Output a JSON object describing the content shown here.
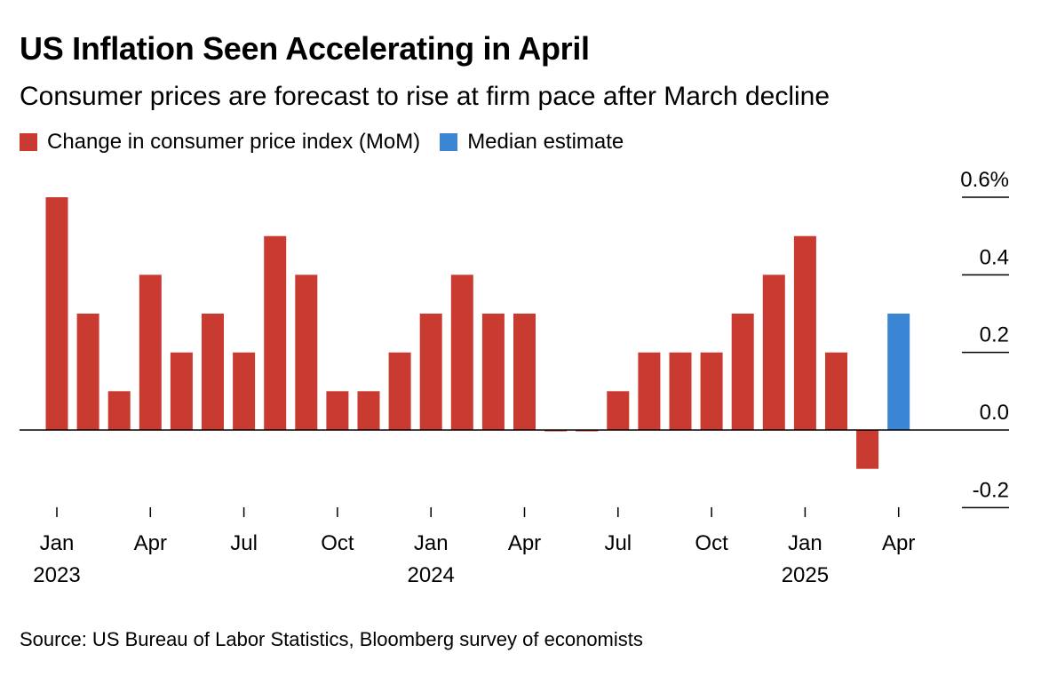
{
  "title": "US Inflation Seen Accelerating in April",
  "subtitle": "Consumer prices are forecast to rise at firm pace after March decline",
  "source": "Source: US Bureau of Labor Statistics, Bloomberg survey of economists",
  "colors": {
    "actual": "#c93a30",
    "estimate": "#3a86d4",
    "axis": "#000000"
  },
  "chart_data": {
    "type": "bar",
    "legend": [
      {
        "name": "Change in consumer price index (MoM)",
        "color": "#c93a30"
      },
      {
        "name": "Median estimate",
        "color": "#3a86d4"
      }
    ],
    "categories": [
      "2023-01",
      "2023-02",
      "2023-03",
      "2023-04",
      "2023-05",
      "2023-06",
      "2023-07",
      "2023-08",
      "2023-09",
      "2023-10",
      "2023-11",
      "2023-12",
      "2024-01",
      "2024-02",
      "2024-03",
      "2024-04",
      "2024-05",
      "2024-06",
      "2024-07",
      "2024-08",
      "2024-09",
      "2024-10",
      "2024-11",
      "2024-12",
      "2025-01",
      "2025-02",
      "2025-03",
      "2025-04"
    ],
    "series": [
      {
        "name": "Change in consumer price index (MoM)",
        "values": [
          0.6,
          0.3,
          0.1,
          0.4,
          0.2,
          0.3,
          0.2,
          0.5,
          0.4,
          0.1,
          0.1,
          0.2,
          0.3,
          0.4,
          0.3,
          0.3,
          0.0,
          0.0,
          0.1,
          0.2,
          0.2,
          0.2,
          0.3,
          0.4,
          0.5,
          0.2,
          -0.1,
          null
        ]
      },
      {
        "name": "Median estimate",
        "values": [
          null,
          null,
          null,
          null,
          null,
          null,
          null,
          null,
          null,
          null,
          null,
          null,
          null,
          null,
          null,
          null,
          null,
          null,
          null,
          null,
          null,
          null,
          null,
          null,
          null,
          null,
          null,
          0.3
        ]
      }
    ],
    "ylim": [
      -0.2,
      0.6
    ],
    "yticks": [
      {
        "value": 0.6,
        "label": "0.6%"
      },
      {
        "value": 0.4,
        "label": "0.4"
      },
      {
        "value": 0.2,
        "label": "0.2"
      },
      {
        "value": 0.0,
        "label": "0.0"
      },
      {
        "value": -0.2,
        "label": "-0.2"
      }
    ],
    "xticks": [
      {
        "index": 0,
        "month": "Jan",
        "year": "2023"
      },
      {
        "index": 3,
        "month": "Apr",
        "year": ""
      },
      {
        "index": 6,
        "month": "Jul",
        "year": ""
      },
      {
        "index": 9,
        "month": "Oct",
        "year": ""
      },
      {
        "index": 12,
        "month": "Jan",
        "year": "2024"
      },
      {
        "index": 15,
        "month": "Apr",
        "year": ""
      },
      {
        "index": 18,
        "month": "Jul",
        "year": ""
      },
      {
        "index": 21,
        "month": "Oct",
        "year": ""
      },
      {
        "index": 24,
        "month": "Jan",
        "year": "2025"
      },
      {
        "index": 27,
        "month": "Apr",
        "year": ""
      }
    ]
  }
}
